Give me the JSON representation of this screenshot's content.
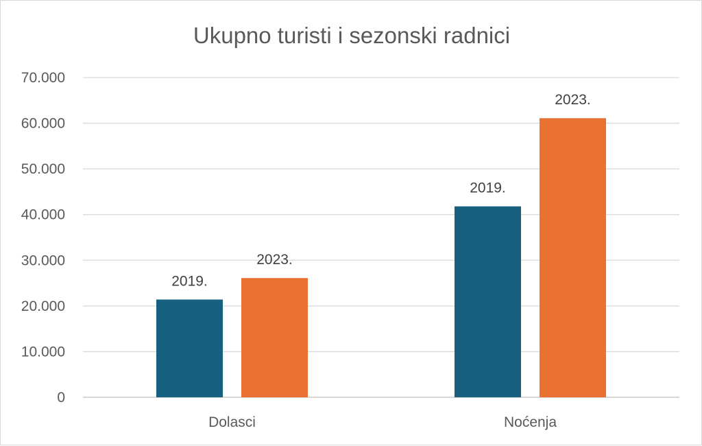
{
  "chart_data": {
    "type": "bar",
    "title": "Ukupno turisti i sezonski radnici",
    "xlabel": "",
    "ylabel": "",
    "categories": [
      "Dolasci",
      "Noćenja"
    ],
    "series": [
      {
        "values": [
          21400,
          41800
        ],
        "color": "#17607f",
        "data_labels": [
          "2019.",
          "2019."
        ]
      },
      {
        "values": [
          26100,
          61100
        ],
        "color": "#e97132",
        "data_labels": [
          "2023.",
          "2023."
        ]
      }
    ],
    "ylim": [
      0,
      70000
    ],
    "yticks": [
      0,
      10000,
      20000,
      30000,
      40000,
      50000,
      60000,
      70000
    ],
    "ytick_labels": [
      "0",
      "10.000",
      "20.000",
      "30.000",
      "40.000",
      "50.000",
      "60.000",
      "70.000"
    ],
    "grid": true,
    "legend": "none"
  }
}
